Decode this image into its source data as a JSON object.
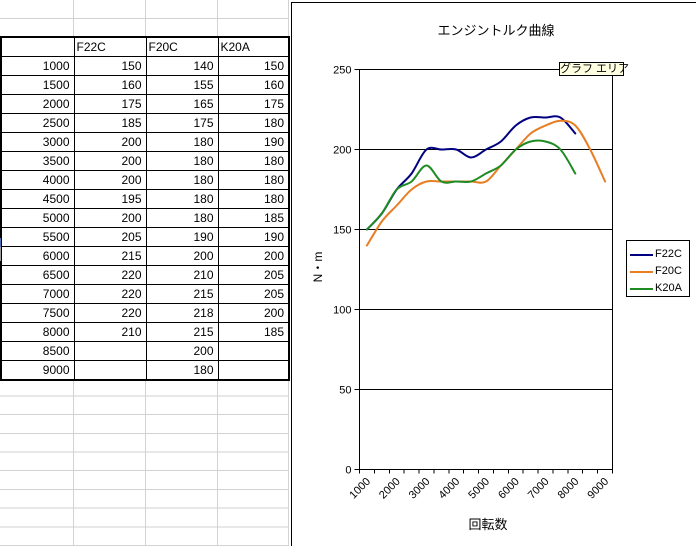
{
  "table": {
    "header": [
      "",
      "F22C",
      "F20C",
      "K20A"
    ],
    "rows": [
      [
        "1000",
        "150",
        "140",
        "150"
      ],
      [
        "1500",
        "160",
        "155",
        "160"
      ],
      [
        "2000",
        "175",
        "165",
        "175"
      ],
      [
        "2500",
        "185",
        "175",
        "180"
      ],
      [
        "3000",
        "200",
        "180",
        "190"
      ],
      [
        "3500",
        "200",
        "180",
        "180"
      ],
      [
        "4000",
        "200",
        "180",
        "180"
      ],
      [
        "4500",
        "195",
        "180",
        "180"
      ],
      [
        "5000",
        "200",
        "180",
        "185"
      ],
      [
        "5500",
        "205",
        "190",
        "190"
      ],
      [
        "6000",
        "215",
        "200",
        "200"
      ],
      [
        "6500",
        "220",
        "210",
        "205"
      ],
      [
        "7000",
        "220",
        "215",
        "205"
      ],
      [
        "7500",
        "220",
        "218",
        "200"
      ],
      [
        "8000",
        "210",
        "215",
        "185"
      ],
      [
        "8500",
        "",
        "200",
        ""
      ],
      [
        "9000",
        "",
        "180",
        ""
      ]
    ]
  },
  "chart": {
    "title": "エンジントルク曲線",
    "tooltip": "グラフ エリア",
    "x_axis_title": "回転数",
    "y_axis_title": "N・m"
  },
  "chart_data": {
    "type": "line",
    "title": "エンジントルク曲線",
    "xlabel": "回転数",
    "ylabel": "N・m",
    "categories": [
      1000,
      1500,
      2000,
      2500,
      3000,
      3500,
      4000,
      4500,
      5000,
      5500,
      6000,
      6500,
      7000,
      7500,
      8000,
      8500,
      9000
    ],
    "series": [
      {
        "name": "F22C",
        "color": "#000080",
        "values": [
          150,
          160,
          175,
          185,
          200,
          200,
          200,
          195,
          200,
          205,
          215,
          220,
          220,
          220,
          210
        ]
      },
      {
        "name": "F20C",
        "color": "#E87E23",
        "values": [
          140,
          155,
          165,
          175,
          180,
          180,
          180,
          180,
          180,
          190,
          200,
          210,
          215,
          218,
          215,
          200,
          180
        ]
      },
      {
        "name": "K20A",
        "color": "#1E8B23",
        "values": [
          150,
          160,
          175,
          180,
          190,
          180,
          180,
          180,
          185,
          190,
          200,
          205,
          205,
          200,
          185
        ]
      }
    ],
    "ylim": [
      0,
      250
    ],
    "y_ticks": [
      0,
      50,
      100,
      150,
      200,
      250
    ],
    "x_tick_labels": [
      "1000",
      "2000",
      "3000",
      "4000",
      "5000",
      "6000",
      "7000",
      "8000",
      "9000"
    ],
    "legend_position": "right",
    "grid": "horizontal",
    "smoothed": true
  },
  "colors": {
    "gridline_gray": "#d2d2d2",
    "tooltip_bg": "#ffffe1",
    "series_f22c": "#000080",
    "series_f20c": "#E87E23",
    "series_k20a": "#1E8B23"
  }
}
